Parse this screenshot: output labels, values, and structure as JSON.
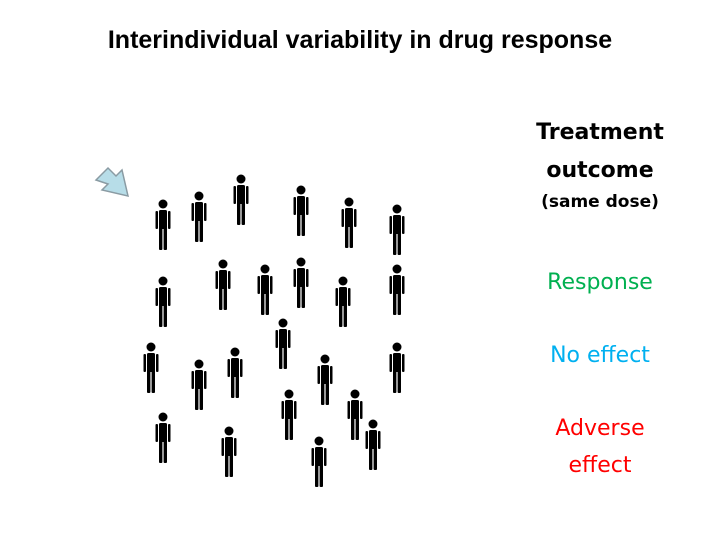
{
  "title": "Interindividual variability in drug response",
  "panel": {
    "heading": "Treatment outcome",
    "subheading": "(same dose)",
    "outcomes": [
      {
        "label": "Response",
        "color": "#00b050"
      },
      {
        "label": "No effect",
        "color": "#00b0f0"
      },
      {
        "label": "Adverse effect",
        "color": "#ff0000"
      }
    ]
  }
}
